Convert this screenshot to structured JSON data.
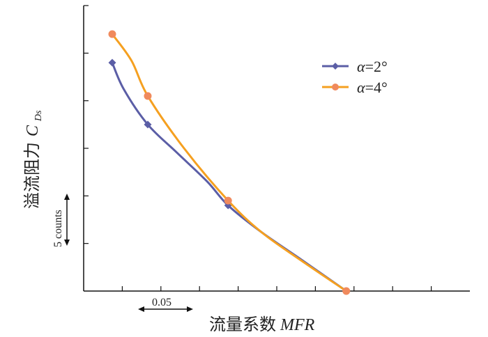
{
  "chart_data": {
    "type": "line",
    "title": "",
    "xlabel_main": "流量系数",
    "xlabel_var": "MFR",
    "ylabel_main": "溢流阻力",
    "ylabel_var": "C",
    "ylabel_sub": "Ds",
    "x_scale_label": "0.05",
    "y_scale_label": "5 counts",
    "xlim": [
      0.1,
      0.6
    ],
    "ylim": [
      0,
      30
    ],
    "x_ticks": [
      0.15,
      0.2,
      0.25,
      0.3,
      0.35,
      0.4,
      0.45,
      0.5,
      0.55
    ],
    "y_ticks": [
      5,
      10,
      15,
      20,
      25,
      30
    ],
    "series": [
      {
        "name": "α=2°",
        "legend_symbol": "α",
        "legend_value": "=2°",
        "color": "#5b5ea6",
        "marker": "diamond",
        "x": [
          0.137,
          0.183,
          0.287,
          0.44
        ],
        "y": [
          24,
          17.5,
          9,
          0
        ],
        "curve_x": [
          0.137,
          0.152,
          0.183,
          0.22,
          0.26,
          0.287,
          0.33,
          0.38,
          0.44
        ],
        "curve_y": [
          24,
          21.2,
          17.5,
          14.6,
          11.5,
          9,
          6.2,
          3.4,
          0
        ]
      },
      {
        "name": "α=4°",
        "legend_symbol": "α",
        "legend_value": "=4°",
        "color": "#f5a020",
        "marker": "circle",
        "x": [
          0.137,
          0.183,
          0.287,
          0.44
        ],
        "y": [
          27,
          20.5,
          9.5,
          0
        ],
        "curve_x": [
          0.137,
          0.162,
          0.183,
          0.23,
          0.287,
          0.33,
          0.38,
          0.44
        ],
        "curve_y": [
          27,
          24.2,
          20.5,
          15,
          9.5,
          6.2,
          3.3,
          0
        ]
      }
    ],
    "marker_colors": {
      "circle": "#f08a5d",
      "diamond": "#5b5ea6"
    },
    "legend_position": "upper-right"
  }
}
